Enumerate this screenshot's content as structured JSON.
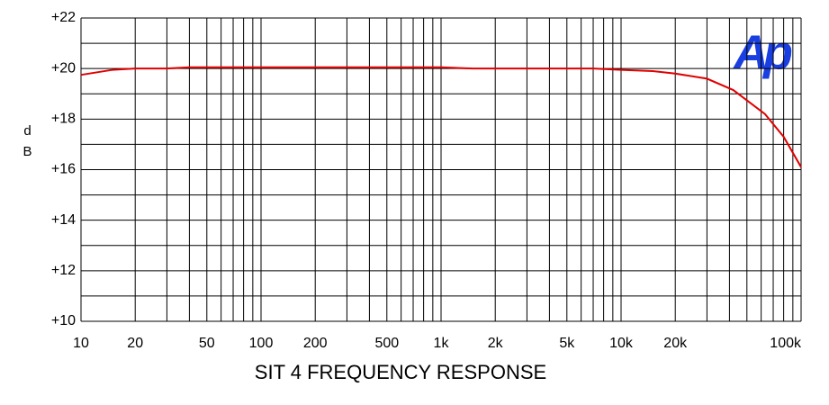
{
  "chart_data": {
    "type": "line",
    "title": "SIT 4 FREQUENCY RESPONSE",
    "y_label": "dB",
    "logo": "Ap",
    "x_log": true,
    "grid": true,
    "xlim": [
      10,
      100000
    ],
    "ylim": [
      10,
      22
    ],
    "xticks": [
      10,
      20,
      50,
      100,
      200,
      500,
      {
        "value": 1000,
        "label": "1k"
      },
      {
        "value": 2000,
        "label": "2k"
      },
      {
        "value": 5000,
        "label": "5k"
      },
      {
        "value": 10000,
        "label": "10k"
      },
      {
        "value": 20000,
        "label": "20k"
      },
      {
        "value": 100000,
        "label": "100k"
      }
    ],
    "xminorticks": [
      30,
      40,
      60,
      70,
      80,
      90,
      300,
      400,
      600,
      700,
      800,
      900,
      3000,
      4000,
      6000,
      7000,
      8000,
      9000,
      30000,
      40000,
      50000,
      60000,
      70000,
      80000,
      90000
    ],
    "yticks": [
      {
        "value": 10,
        "label": "+10"
      },
      {
        "value": 12,
        "label": "+12"
      },
      {
        "value": 14,
        "label": "+14"
      },
      {
        "value": 16,
        "label": "+16"
      },
      {
        "value": 18,
        "label": "+18"
      },
      {
        "value": 20,
        "label": "+20"
      },
      {
        "value": 22,
        "label": "+22"
      }
    ],
    "yminorticks": [
      11,
      13,
      15,
      17,
      19,
      21
    ],
    "series": [
      {
        "name": "response",
        "color": "#e00000",
        "x": [
          10,
          15,
          20,
          30,
          40,
          100,
          1000,
          1500,
          5000,
          7000,
          10000,
          15000,
          20000,
          30000,
          42000,
          63000,
          80000,
          100000
        ],
        "values": [
          19.75,
          19.95,
          20.0,
          20.0,
          20.05,
          20.05,
          20.05,
          20.0,
          20.0,
          20.0,
          19.95,
          19.9,
          19.8,
          19.6,
          19.15,
          18.2,
          17.3,
          16.1
        ]
      }
    ]
  }
}
